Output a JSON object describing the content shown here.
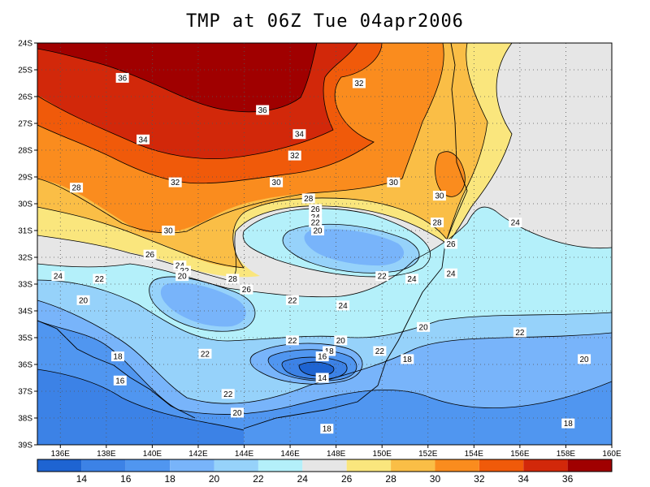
{
  "title": "TMP at 06Z Tue 04apr2006",
  "chart_data": {
    "type": "heatmap",
    "title": "TMP at 06Z Tue 04apr2006",
    "lon_range": [
      135,
      160
    ],
    "lat_range": [
      -39,
      -24
    ],
    "x_ticks": [
      {
        "value": 136,
        "label": "136E"
      },
      {
        "value": 138,
        "label": "138E"
      },
      {
        "value": 140,
        "label": "140E"
      },
      {
        "value": 142,
        "label": "142E"
      },
      {
        "value": 144,
        "label": "144E"
      },
      {
        "value": 146,
        "label": "146E"
      },
      {
        "value": 148,
        "label": "148E"
      },
      {
        "value": 150,
        "label": "150E"
      },
      {
        "value": 152,
        "label": "152E"
      },
      {
        "value": 154,
        "label": "154E"
      },
      {
        "value": 156,
        "label": "156E"
      },
      {
        "value": 158,
        "label": "158E"
      },
      {
        "value": 160,
        "label": "160E"
      }
    ],
    "y_ticks": [
      {
        "value": -24,
        "label": "24S"
      },
      {
        "value": -25,
        "label": "25S"
      },
      {
        "value": -26,
        "label": "26S"
      },
      {
        "value": -27,
        "label": "27S"
      },
      {
        "value": -28,
        "label": "28S"
      },
      {
        "value": -29,
        "label": "29S"
      },
      {
        "value": -30,
        "label": "30S"
      },
      {
        "value": -31,
        "label": "31S"
      },
      {
        "value": -32,
        "label": "32S"
      },
      {
        "value": -33,
        "label": "33S"
      },
      {
        "value": -34,
        "label": "34S"
      },
      {
        "value": -35,
        "label": "35S"
      },
      {
        "value": -36,
        "label": "36S"
      },
      {
        "value": -37,
        "label": "37S"
      },
      {
        "value": -38,
        "label": "38S"
      },
      {
        "value": -39,
        "label": "39S"
      }
    ],
    "colorbar": {
      "colors": [
        "#1e64d2",
        "#3c82e6",
        "#5096f0",
        "#78b4fa",
        "#96d2fa",
        "#b4f0fa",
        "#e6e6e6",
        "#fae67d",
        "#fabe46",
        "#fa8c1e",
        "#f05a0a",
        "#d2280a",
        "#a00000"
      ],
      "labels": [
        "14",
        "16",
        "18",
        "20",
        "22",
        "24",
        "26",
        "28",
        "30",
        "32",
        "34",
        "36"
      ]
    },
    "contour_labels": [
      {
        "text": "36",
        "lon": 138.7,
        "lat": -25.3
      },
      {
        "text": "36",
        "lon": 144.8,
        "lat": -26.5
      },
      {
        "text": "34",
        "lon": 139.6,
        "lat": -27.6
      },
      {
        "text": "34",
        "lon": 146.4,
        "lat": -27.4
      },
      {
        "text": "32",
        "lon": 149.0,
        "lat": -25.5
      },
      {
        "text": "32",
        "lon": 146.2,
        "lat": -28.2
      },
      {
        "text": "32",
        "lon": 141.0,
        "lat": -29.2
      },
      {
        "text": "30",
        "lon": 145.4,
        "lat": -29.2
      },
      {
        "text": "30",
        "lon": 150.5,
        "lat": -29.2
      },
      {
        "text": "30",
        "lon": 152.5,
        "lat": -29.7
      },
      {
        "text": "30",
        "lon": 140.7,
        "lat": -31.0
      },
      {
        "text": "28",
        "lon": 136.7,
        "lat": -29.4
      },
      {
        "text": "28",
        "lon": 146.8,
        "lat": -29.8
      },
      {
        "text": "28",
        "lon": 152.4,
        "lat": -30.7
      },
      {
        "text": "28",
        "lon": 143.5,
        "lat": -32.8
      },
      {
        "text": "26",
        "lon": 147.1,
        "lat": -30.2
      },
      {
        "text": "26",
        "lon": 153.0,
        "lat": -31.5
      },
      {
        "text": "26",
        "lon": 139.9,
        "lat": -31.9
      },
      {
        "text": "26",
        "lon": 144.1,
        "lat": -33.2
      },
      {
        "text": "24",
        "lon": 147.1,
        "lat": -30.5
      },
      {
        "text": "24",
        "lon": 155.8,
        "lat": -30.7
      },
      {
        "text": "24",
        "lon": 141.2,
        "lat": -32.3
      },
      {
        "text": "24",
        "lon": 135.9,
        "lat": -32.7
      },
      {
        "text": "24",
        "lon": 151.3,
        "lat": -32.8
      },
      {
        "text": "24",
        "lon": 153.0,
        "lat": -32.6
      },
      {
        "text": "24",
        "lon": 148.3,
        "lat": -33.8
      },
      {
        "text": "22",
        "lon": 147.1,
        "lat": -30.7
      },
      {
        "text": "22",
        "lon": 141.4,
        "lat": -32.5
      },
      {
        "text": "22",
        "lon": 137.7,
        "lat": -32.8
      },
      {
        "text": "22",
        "lon": 150.0,
        "lat": -32.7
      },
      {
        "text": "22",
        "lon": 146.1,
        "lat": -33.6
      },
      {
        "text": "22",
        "lon": 146.1,
        "lat": -35.1
      },
      {
        "text": "22",
        "lon": 156.0,
        "lat": -34.8
      },
      {
        "text": "22",
        "lon": 142.3,
        "lat": -35.6
      },
      {
        "text": "22",
        "lon": 149.9,
        "lat": -35.5
      },
      {
        "text": "22",
        "lon": 143.3,
        "lat": -37.1
      },
      {
        "text": "20",
        "lon": 147.2,
        "lat": -31.0
      },
      {
        "text": "20",
        "lon": 141.3,
        "lat": -32.7
      },
      {
        "text": "20",
        "lon": 137.0,
        "lat": -33.6
      },
      {
        "text": "20",
        "lon": 151.8,
        "lat": -34.6
      },
      {
        "text": "20",
        "lon": 148.2,
        "lat": -35.1
      },
      {
        "text": "20",
        "lon": 158.8,
        "lat": -35.8
      },
      {
        "text": "20",
        "lon": 143.7,
        "lat": -37.8
      },
      {
        "text": "18",
        "lon": 138.5,
        "lat": -35.7
      },
      {
        "text": "18",
        "lon": 147.7,
        "lat": -35.5
      },
      {
        "text": "18",
        "lon": 151.1,
        "lat": -35.8
      },
      {
        "text": "18",
        "lon": 147.6,
        "lat": -38.4
      },
      {
        "text": "18",
        "lon": 158.1,
        "lat": -38.2
      },
      {
        "text": "16",
        "lon": 138.6,
        "lat": -36.6
      },
      {
        "text": "16",
        "lon": 147.4,
        "lat": -35.7
      },
      {
        "text": "14",
        "lon": 147.4,
        "lat": -36.5
      }
    ]
  }
}
